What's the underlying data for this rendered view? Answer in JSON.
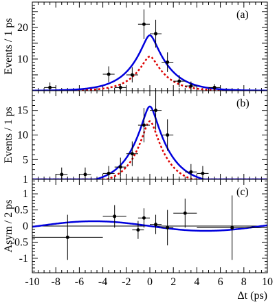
{
  "chart_data": [
    {
      "panel": "(a)",
      "type": "scatter",
      "ylabel": "Events / 1 ps",
      "xlim": [
        -10,
        10
      ],
      "ylim": [
        0,
        28
      ],
      "yticks": [
        10,
        20
      ],
      "points": [
        {
          "x": -8.5,
          "y": 1.0,
          "yerr": 1.6
        },
        {
          "x": -3.5,
          "y": 5.2,
          "yerr": 2.5
        },
        {
          "x": -2.5,
          "y": 1.0,
          "yerr": 1.2
        },
        {
          "x": -1.5,
          "y": 5.0,
          "yerr": 2.4
        },
        {
          "x": -0.5,
          "y": 21.0,
          "yerr": 4.7
        },
        {
          "x": 0.5,
          "y": 18.0,
          "yerr": 4.4
        },
        {
          "x": 1.5,
          "y": 9.0,
          "yerr": 3.1
        },
        {
          "x": 2.5,
          "y": 3.0,
          "yerr": 1.9
        },
        {
          "x": 3.5,
          "y": 1.5,
          "yerr": 1.4
        },
        {
          "x": 5.5,
          "y": 1.0,
          "yerr": 1.1
        }
      ],
      "curves": {
        "total_peak": 17.5,
        "total_tau": 1.55,
        "background_peak": 10.8,
        "background_tau": 1.3
      }
    },
    {
      "panel": "(b)",
      "type": "scatter",
      "ylabel": "Events / 1 ps",
      "xlim": [
        -10,
        10
      ],
      "ylim": [
        1,
        19
      ],
      "yticks": [
        1,
        5,
        10,
        15
      ],
      "points": [
        {
          "x": -7.5,
          "y": 2.0,
          "yerr": 1.4
        },
        {
          "x": -5.5,
          "y": 2.0,
          "yerr": 1.4
        },
        {
          "x": -3.5,
          "y": 2.2,
          "yerr": 1.5
        },
        {
          "x": -2.5,
          "y": 3.5,
          "yerr": 1.9
        },
        {
          "x": -1.5,
          "y": 6.2,
          "yerr": 2.5
        },
        {
          "x": -0.5,
          "y": 12.0,
          "yerr": 3.5
        },
        {
          "x": 0.5,
          "y": 15.0,
          "yerr": 3.9
        },
        {
          "x": 1.5,
          "y": 10.0,
          "yerr": 3.2
        },
        {
          "x": 3.5,
          "y": 2.5,
          "yerr": 1.6
        },
        {
          "x": 4.5,
          "y": 2.2,
          "yerr": 1.5
        }
      ],
      "curves": {
        "total_peak": 15.8,
        "total_tau": 1.55,
        "background_peak": 12.8,
        "background_tau": 1.3
      }
    },
    {
      "panel": "(c)",
      "type": "scatter",
      "ylabel": "Asym / 2 ps",
      "xlabel": "Δt (ps)",
      "xlim": [
        -10,
        10
      ],
      "ylim": [
        -1.45,
        1.45
      ],
      "yticks": [
        -1,
        -0.5,
        0,
        0.5,
        1
      ],
      "ytick_labels": [
        "-1",
        "-0.5",
        "0",
        "0.5",
        "1"
      ],
      "xticks": [
        -10,
        -8,
        -6,
        -4,
        -2,
        0,
        2,
        4,
        6,
        8,
        10
      ],
      "points": [
        {
          "x": -7.0,
          "y": -0.35,
          "yerr": 0.7,
          "xerr": 3.0
        },
        {
          "x": -3.0,
          "y": 0.3,
          "yerr": 0.35,
          "xerr": 1.0
        },
        {
          "x": -1.0,
          "y": -0.12,
          "yerr": 0.28,
          "xerr": 0.5
        },
        {
          "x": -0.5,
          "y": 0.25,
          "yerr": 0.3,
          "xerr": 0.5
        },
        {
          "x": 0.5,
          "y": 0.05,
          "yerr": 0.3,
          "xerr": 0.5
        },
        {
          "x": 1.5,
          "y": -0.05,
          "yerr": 0.55,
          "xerr": 0.5
        },
        {
          "x": 3.0,
          "y": 0.4,
          "yerr": 0.45,
          "xerr": 1.0
        },
        {
          "x": 7.0,
          "y": -0.05,
          "yerr": 1.0,
          "xerr": 3.0
        }
      ],
      "curve": {
        "amplitude": -0.15,
        "omega": 0.33
      }
    }
  ],
  "colors": {
    "fit_total": "#0000dd",
    "fit_background": "#dd0000",
    "data": "#000000",
    "frame": "#000000"
  }
}
